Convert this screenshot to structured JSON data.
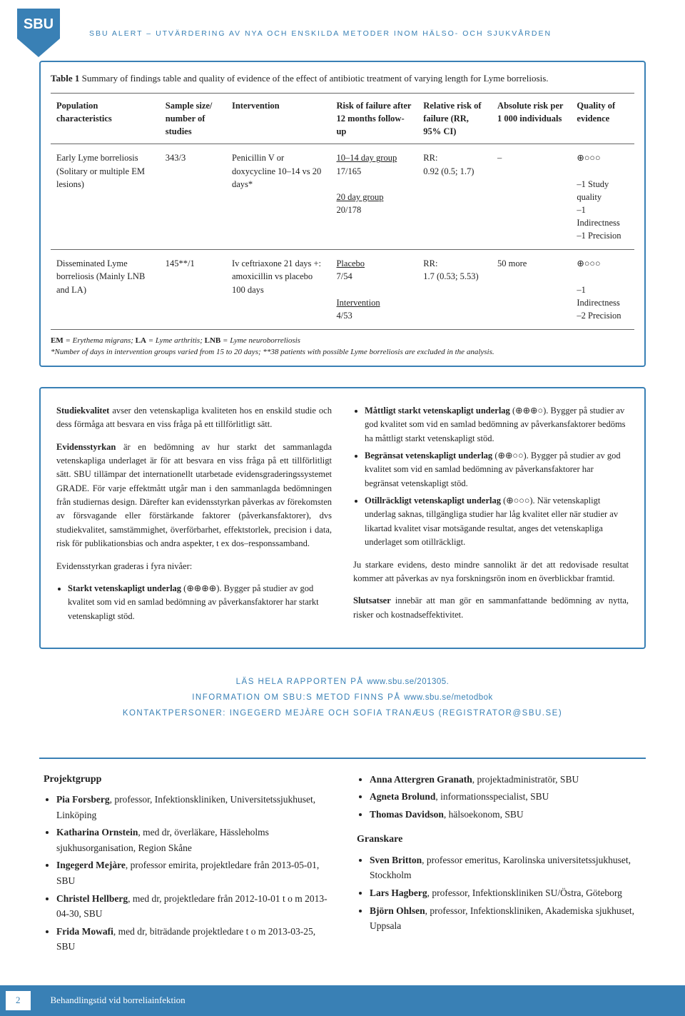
{
  "header_line": "sbu alert – utvärdering av nya och enskilda metoder inom hälso- och sjukvården",
  "logo": {
    "bg": "#3980b5",
    "text": "SBU"
  },
  "table": {
    "caption_bold": "Table 1",
    "caption_rest": " Summary of findings table and quality of evidence of the effect of antibiotic treatment of varying length for Lyme borreliosis.",
    "headers": [
      "Population characteristics",
      "Sample size/ number of studies",
      "Intervention",
      "Risk of failure after 12 months follow-up",
      "Relative risk of failure (RR, 95% CI)",
      "Absolute risk per 1 000 individuals",
      "Quality of evidence"
    ],
    "rows": [
      {
        "c0": "Early Lyme borreliosis (Solitary or multiple EM lesions)",
        "c1": "343/3",
        "c2": "Penicillin V or doxycycline 10–14 vs 20 days*",
        "c3a": "10–14 day group",
        "c3b": "17/165",
        "c3c": "20 day group",
        "c3d": "20/178",
        "c4a": "RR:",
        "c4b": "0.92 (0.5; 1.7)",
        "c5": "–",
        "c6a": "⊕○○○",
        "c6b": "–1 Study quality",
        "c6c": "–1 Indirectness",
        "c6d": "–1 Precision"
      },
      {
        "c0": "Disseminated Lyme borreliosis (Mainly LNB and LA)",
        "c1": "145**/1",
        "c2": "Iv ceftriaxone 21 days +: amoxicillin vs placebo 100 days",
        "c3a": "Placebo",
        "c3b": "7/54",
        "c3c": "Intervention",
        "c3d": "4/53",
        "c4a": "RR:",
        "c4b": "1.7 (0.53; 5.53)",
        "c5": "50 more",
        "c6a": "⊕○○○",
        "c6b": "–1 Indirectness",
        "c6c": "–2 Precision",
        "c6d": ""
      }
    ],
    "note_abbrev_html": "EM = Erythema migrans; LA = Lyme arthritis; LNB = Lyme neuroborreliosis",
    "note_line": "*Number of days in intervention groups varied from 15 to 20 days; **38 patients with possible Lyme borreliosis are excluded in the analysis."
  },
  "defs": {
    "left": [
      {
        "t": "p",
        "html": "<b>Studiekvalitet</b> avser den vetenskapliga kvaliteten hos en enskild studie och dess förmåga att besvara en viss fråga på ett tillförlitligt sätt."
      },
      {
        "t": "p",
        "html": "<b>Evidensstyrkan</b> är en bedömning av hur starkt det sammanlagda vetenskapliga underlaget är för att besvara en viss fråga på ett tillförlitligt sätt. SBU tillämpar det internationellt utarbetade evidensgraderingssystemet GRADE. För varje effektmått utgår man i den sammanlagda bedömningen från studiernas design. Därefter kan evidensstyrkan påverkas av förekomsten av försvagande eller förstärkande faktorer (påverkansfaktorer), dvs studiekvalitet, samstämmighet, överförbarhet, effektstorlek, precision i data, risk för publikationsbias och andra aspekter, t ex dos–responssamband."
      },
      {
        "t": "p",
        "html": "Evidensstyrkan graderas i fyra nivåer:"
      },
      {
        "t": "li",
        "html": "<b>Starkt vetenskapligt underlag</b> (⊕⊕⊕⊕). Bygger på studier av god kvalitet som vid en samlad bedömning av påverkansfaktorer har starkt vetenskapligt stöd."
      }
    ],
    "right": [
      {
        "t": "li",
        "html": "<b>Måttligt starkt vetenskapligt underlag</b> (⊕⊕⊕○). Bygger på studier av god kvalitet som vid en samlad bedömning av påverkansfaktorer bedöms ha måttligt starkt vetenskapligt stöd."
      },
      {
        "t": "li",
        "html": "<b>Begränsat vetenskapligt underlag</b> (⊕⊕○○). Bygger på studier av god kvalitet som vid en samlad bedömning av påverkansfaktorer har begränsat vetenskapligt stöd."
      },
      {
        "t": "li",
        "html": "<b>Otillräckligt vetenskapligt underlag</b> (⊕○○○). När vetenskapligt underlag saknas, tillgängliga studier har låg kvalitet eller när studier av likartad kvalitet visar motsägande resultat, anges det vetenskapliga underlaget som otillräckligt."
      },
      {
        "t": "p",
        "html": "Ju starkare evidens, desto mindre sannolikt är det att redovisade resultat kommer att påverkas av nya forskningsrön inom en överblickbar framtid."
      },
      {
        "t": "p",
        "html": "<b>Slutsatser</b> innebär att man gör en sammanfattande bedömning av nytta, risker och kostnadseffektivitet."
      }
    ]
  },
  "banner": {
    "l1_a": "läs hela rapporten på ",
    "l1_b": "www.sbu.se/201305.",
    "l2_a": "information om sbu:s metod finns på ",
    "l2_b": "www.sbu.se/metodbok",
    "l3": "kontaktpersoner: ingegerd mejàre och sofia tranæus (registrator@sbu.se)"
  },
  "proj": {
    "title": "Projektgrupp",
    "left": [
      "<b>Pia Forsberg</b>, professor, Infektionskliniken, Universitetssjukhuset, Linköping",
      "<b>Katharina Ornstein</b>, med dr, överläkare, Hässleholms sjukhusorganisation, Region Skåne",
      "<b>Ingegerd Mejàre</b>, professor emirita, projektledare från 2013-05-01, SBU",
      "<b>Christel Hellberg</b>, med dr, projektledare från 2012-10-01 t o m 2013-04-30, SBU",
      "<b>Frida Mowafi</b>, med dr, biträdande projektledare t o m 2013-03-25, SBU"
    ],
    "right_top": [
      "<b>Anna Attergren Granath</b>, projektadministratör, SBU",
      "<b>Agneta Brolund</b>, informationsspecialist, SBU",
      "<b>Thomas Davidson</b>, hälsoekonom, SBU"
    ],
    "rev_title": "Granskare",
    "right_bot": [
      "<b>Sven Britton</b>, professor emeritus, Karolinska universitetssjukhuset, Stockholm",
      "<b>Lars Hagberg</b>, professor, Infektionskliniken SU/Östra, Göteborg",
      "<b>Björn Ohlsen</b>, professor, Infektionskliniken, Akademiska sjukhuset, Uppsala"
    ]
  },
  "footer": {
    "page": "2",
    "title": "Behandlingstid vid borreliainfektion"
  }
}
